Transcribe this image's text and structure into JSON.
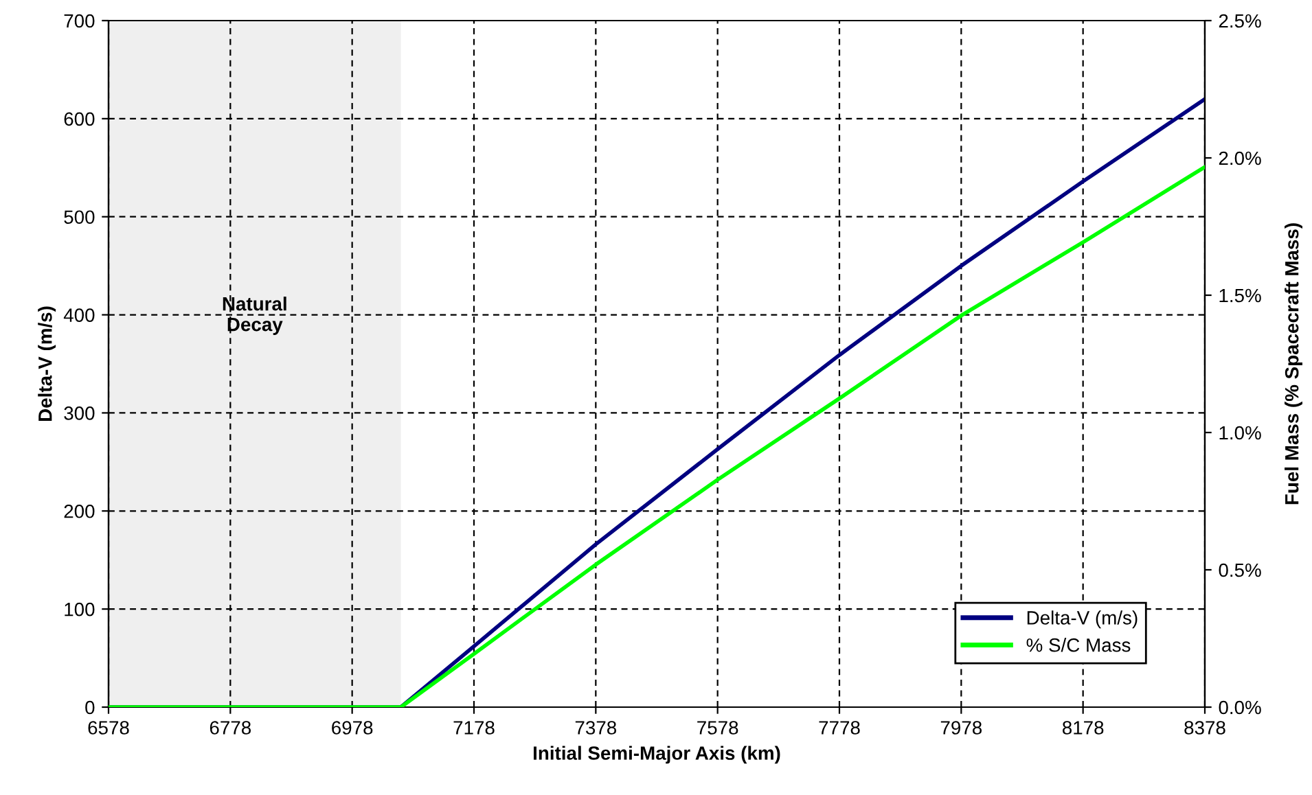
{
  "chart_data": {
    "type": "line",
    "xlabel": "Initial Semi-Major Axis (km)",
    "ylabel": "Delta-V (m/s)",
    "y2label": "Fuel Mass (% Spacecraft Mass)",
    "x": [
      6578,
      7058,
      7178,
      7378,
      7578,
      7778,
      7978,
      8178,
      8378
    ],
    "series": [
      {
        "name": "Delta-V (m/s)",
        "color": "#000080",
        "values": [
          0,
          0,
          62,
          166,
          263,
          359,
          450,
          536,
          620
        ]
      },
      {
        "name": "% S/C Mass",
        "color": "#00ff00",
        "axis": "y2",
        "values": [
          0,
          0,
          0.194,
          0.519,
          0.828,
          1.124,
          1.426,
          1.693,
          1.967
        ]
      }
    ],
    "xlim": [
      6578,
      8378
    ],
    "xticks": [
      6578,
      6778,
      6978,
      7178,
      7378,
      7578,
      7778,
      7978,
      8178,
      8378
    ],
    "ylim": [
      0,
      700
    ],
    "yticks": [
      0,
      100,
      200,
      300,
      400,
      500,
      600,
      700
    ],
    "y2lim": [
      0,
      2.5
    ],
    "y2ticks": [
      {
        "value": 0,
        "label": "0.0%"
      },
      {
        "value": 0.5,
        "label": "0.5%"
      },
      {
        "value": 1.0,
        "label": "1.0%"
      },
      {
        "value": 1.5,
        "label": "1.5%"
      },
      {
        "value": 2.0,
        "label": "2.0%"
      },
      {
        "value": 2.5,
        "label": "2.5%"
      }
    ],
    "bands": [
      {
        "axis": "x",
        "from": 6578,
        "to": 7058,
        "label": "Natural\nDecay",
        "color": "#efefef"
      }
    ],
    "grid": true,
    "legend": "bottom right",
    "marker": "none",
    "line_style": "solid"
  }
}
